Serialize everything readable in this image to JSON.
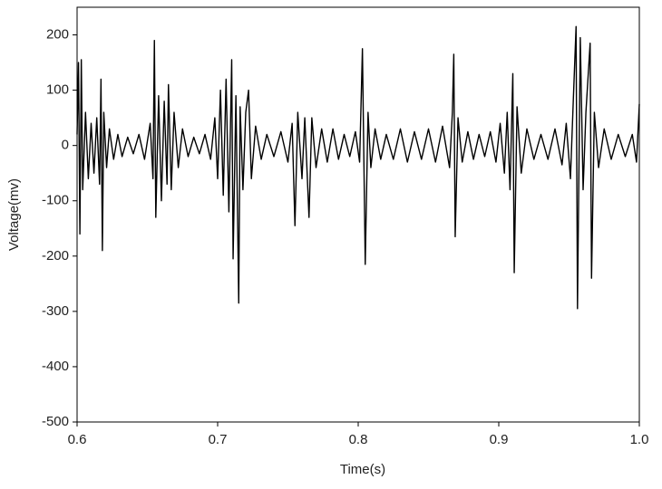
{
  "chart_data": {
    "type": "line",
    "x_label": "Time(s)",
    "y_label": "Voltage(mv)",
    "color": "#000000",
    "x": [
      0.6,
      0.601,
      0.602,
      0.603,
      0.604,
      0.606,
      0.608,
      0.61,
      0.612,
      0.614,
      0.616,
      0.617,
      0.618,
      0.619,
      0.621,
      0.623,
      0.626,
      0.629,
      0.632,
      0.636,
      0.64,
      0.644,
      0.648,
      0.652,
      0.654,
      0.655,
      0.656,
      0.658,
      0.66,
      0.662,
      0.664,
      0.665,
      0.667,
      0.669,
      0.672,
      0.675,
      0.679,
      0.683,
      0.687,
      0.691,
      0.695,
      0.698,
      0.7,
      0.702,
      0.704,
      0.706,
      0.708,
      0.71,
      0.711,
      0.713,
      0.715,
      0.716,
      0.718,
      0.72,
      0.722,
      0.724,
      0.727,
      0.731,
      0.735,
      0.74,
      0.745,
      0.75,
      0.753,
      0.755,
      0.757,
      0.76,
      0.762,
      0.765,
      0.767,
      0.77,
      0.774,
      0.778,
      0.782,
      0.786,
      0.79,
      0.794,
      0.798,
      0.801,
      0.803,
      0.805,
      0.807,
      0.809,
      0.812,
      0.816,
      0.82,
      0.825,
      0.83,
      0.835,
      0.84,
      0.845,
      0.85,
      0.855,
      0.86,
      0.865,
      0.867,
      0.868,
      0.869,
      0.871,
      0.874,
      0.878,
      0.882,
      0.886,
      0.89,
      0.894,
      0.898,
      0.901,
      0.904,
      0.906,
      0.908,
      0.91,
      0.911,
      0.913,
      0.916,
      0.92,
      0.925,
      0.93,
      0.935,
      0.94,
      0.945,
      0.948,
      0.951,
      0.953,
      0.955,
      0.956,
      0.958,
      0.96,
      0.962,
      0.965,
      0.966,
      0.968,
      0.971,
      0.975,
      0.98,
      0.985,
      0.99,
      0.995,
      0.998,
      1.0
    ],
    "values": [
      20,
      150,
      -160,
      155,
      -80,
      60,
      -60,
      40,
      -50,
      50,
      -70,
      120,
      -190,
      60,
      -40,
      30,
      -25,
      20,
      -20,
      15,
      -15,
      20,
      -25,
      40,
      -60,
      190,
      -130,
      90,
      -100,
      80,
      -70,
      110,
      -80,
      60,
      -40,
      30,
      -20,
      15,
      -15,
      20,
      -25,
      50,
      -60,
      100,
      -90,
      120,
      -120,
      155,
      -205,
      90,
      -285,
      70,
      -80,
      60,
      100,
      -60,
      35,
      -25,
      20,
      -20,
      25,
      -30,
      40,
      -145,
      60,
      -60,
      50,
      -130,
      50,
      -40,
      30,
      -30,
      30,
      -25,
      20,
      -20,
      25,
      -30,
      175,
      -215,
      60,
      -40,
      30,
      -25,
      20,
      -25,
      30,
      -30,
      25,
      -25,
      30,
      -30,
      35,
      -40,
      60,
      165,
      -165,
      50,
      -30,
      25,
      -25,
      20,
      -20,
      25,
      -30,
      40,
      -50,
      60,
      -80,
      130,
      -230,
      70,
      -50,
      30,
      -25,
      20,
      -25,
      30,
      -35,
      40,
      -60,
      80,
      215,
      -295,
      195,
      -80,
      60,
      185,
      -240,
      60,
      -40,
      30,
      -25,
      20,
      -20,
      20,
      -30,
      75
    ],
    "xlim": [
      0.6,
      1.0
    ],
    "xticks": [
      0.6,
      0.7,
      0.8,
      0.9,
      {
        "value": 1.0,
        "label": "1.0"
      }
    ],
    "ylim": [
      -500,
      250
    ],
    "yticks": [
      -500,
      -400,
      -300,
      -200,
      -100,
      0,
      100,
      200
    ]
  }
}
